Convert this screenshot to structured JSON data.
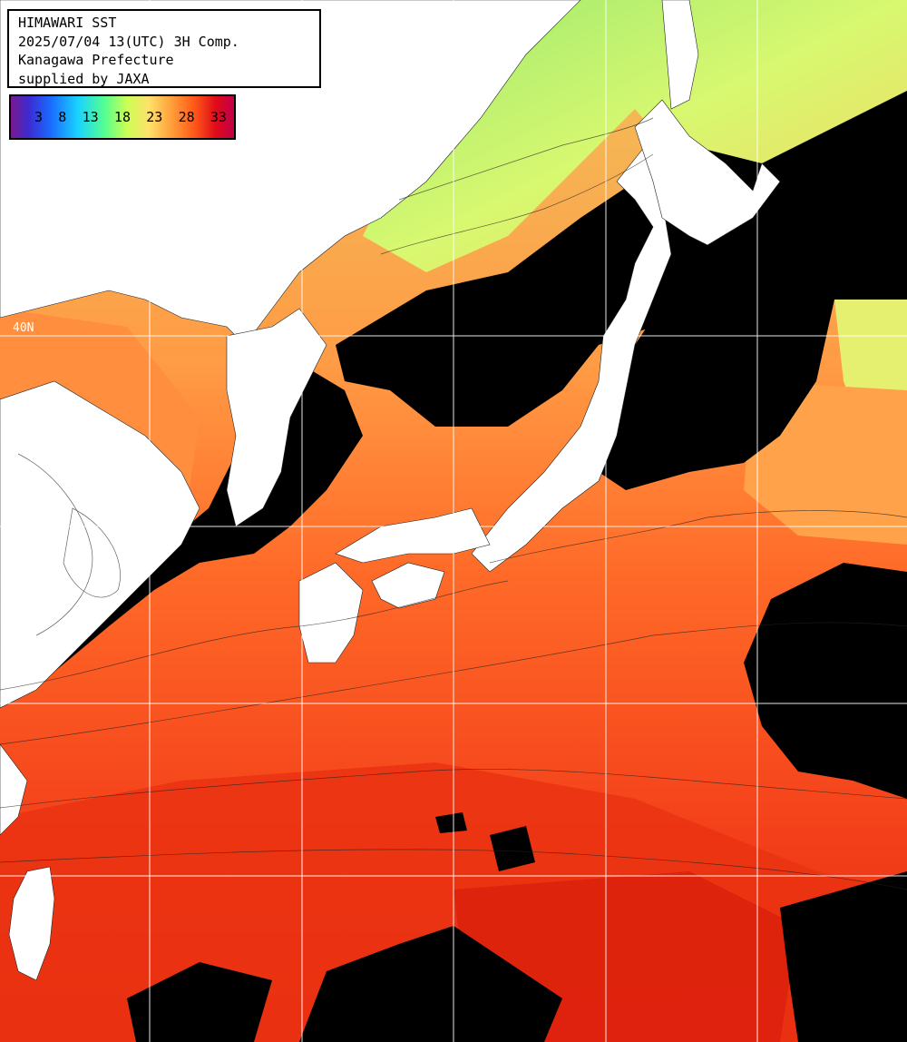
{
  "header": {
    "line1": "HIMAWARI SST",
    "line2": "2025/07/04 13(UTC) 3H Comp.",
    "line3": "Kanagawa Prefecture",
    "line4": "supplied by JAXA"
  },
  "legend": {
    "ticks": [
      "3",
      "8",
      "13",
      "18",
      "23",
      "28",
      "33"
    ]
  },
  "grid": {
    "label": "40N"
  },
  "colors": {
    "land": "#ffffff",
    "cloud": "#000000",
    "warm_sea": "#ff5a1e",
    "hot_sea": "#e8200e",
    "mid_sea": "#ff8a3c",
    "cool_sea": "#f7c15a",
    "cold_sea": "#b5f06a",
    "grid": "#ffffff"
  }
}
